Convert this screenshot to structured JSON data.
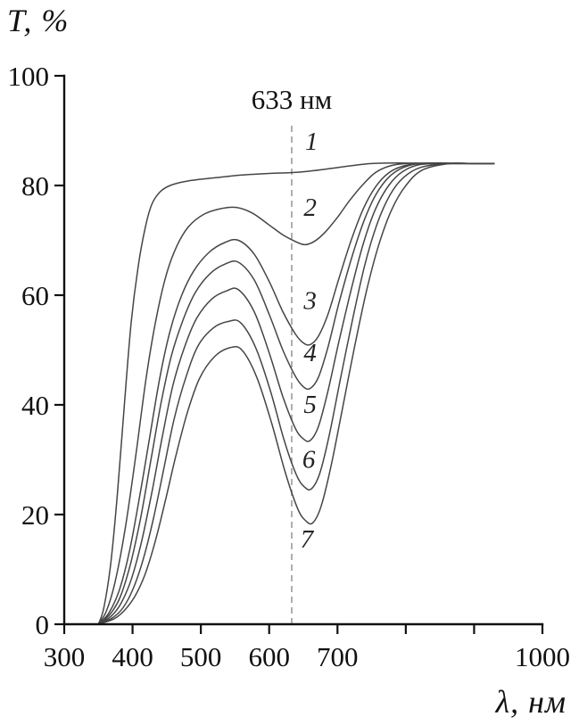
{
  "chart_data": {
    "type": "line",
    "xlabel": "λ, нм",
    "ylabel": "T, %",
    "xlim": [
      300,
      1000
    ],
    "ylim": [
      0,
      100
    ],
    "grid": false,
    "legend_position": "none",
    "x_ticks": {
      "values": [
        300,
        400,
        500,
        600,
        700,
        800,
        900,
        1000
      ],
      "labels": [
        "300",
        "400",
        "500",
        "600",
        "700",
        "",
        "",
        "1000"
      ]
    },
    "y_ticks": {
      "values": [
        0,
        20,
        40,
        60,
        80,
        100
      ],
      "labels": [
        "0",
        "20",
        "40",
        "60",
        "80",
        "100"
      ]
    },
    "annotation": {
      "text": "633 нм",
      "x": 633,
      "text_y": 94,
      "line_top_y": 91,
      "line_bottom_y": 0
    },
    "curve_labels": [
      {
        "text": "1",
        "x": 662,
        "y": 86.5
      },
      {
        "text": "2",
        "x": 660,
        "y": 74.5
      },
      {
        "text": "3",
        "x": 660,
        "y": 57.5
      },
      {
        "text": "4",
        "x": 660,
        "y": 48.0
      },
      {
        "text": "5",
        "x": 660,
        "y": 38.5
      },
      {
        "text": "6",
        "x": 658,
        "y": 28.5
      },
      {
        "text": "7",
        "x": 655,
        "y": 14.0
      }
    ],
    "series": [
      {
        "name": "1",
        "points": [
          [
            350,
            0
          ],
          [
            358,
            3
          ],
          [
            368,
            11
          ],
          [
            378,
            24
          ],
          [
            388,
            40
          ],
          [
            398,
            55
          ],
          [
            408,
            65
          ],
          [
            418,
            72
          ],
          [
            428,
            76.5
          ],
          [
            440,
            78.8
          ],
          [
            455,
            80
          ],
          [
            480,
            80.8
          ],
          [
            520,
            81.4
          ],
          [
            560,
            81.9
          ],
          [
            600,
            82.2
          ],
          [
            640,
            82.4
          ],
          [
            665,
            82.7
          ],
          [
            690,
            83.1
          ],
          [
            720,
            83.6
          ],
          [
            750,
            84
          ],
          [
            790,
            84.1
          ],
          [
            840,
            84
          ],
          [
            890,
            84
          ],
          [
            930,
            84
          ]
        ]
      },
      {
        "name": "2",
        "points": [
          [
            350,
            0
          ],
          [
            362,
            2.5
          ],
          [
            375,
            8
          ],
          [
            390,
            18
          ],
          [
            405,
            31
          ],
          [
            420,
            45
          ],
          [
            435,
            56
          ],
          [
            450,
            64
          ],
          [
            465,
            69
          ],
          [
            482,
            72.5
          ],
          [
            505,
            74.8
          ],
          [
            530,
            75.8
          ],
          [
            552,
            76
          ],
          [
            575,
            75
          ],
          [
            600,
            72.8
          ],
          [
            620,
            71
          ],
          [
            638,
            69.8
          ],
          [
            652,
            69.2
          ],
          [
            666,
            69.8
          ],
          [
            682,
            71.5
          ],
          [
            700,
            74.2
          ],
          [
            718,
            77.3
          ],
          [
            736,
            80
          ],
          [
            755,
            82.3
          ],
          [
            775,
            83.5
          ],
          [
            800,
            84
          ],
          [
            850,
            84.1
          ],
          [
            900,
            84
          ],
          [
            930,
            84
          ]
        ]
      },
      {
        "name": "3",
        "points": [
          [
            350,
            0
          ],
          [
            365,
            2
          ],
          [
            380,
            6
          ],
          [
            395,
            13
          ],
          [
            410,
            23
          ],
          [
            425,
            34
          ],
          [
            440,
            45
          ],
          [
            455,
            53.5
          ],
          [
            472,
            60
          ],
          [
            490,
            64.5
          ],
          [
            512,
            67.8
          ],
          [
            535,
            69.6
          ],
          [
            555,
            70
          ],
          [
            578,
            67.5
          ],
          [
            600,
            62.5
          ],
          [
            620,
            57
          ],
          [
            638,
            53
          ],
          [
            650,
            51.3
          ],
          [
            660,
            51
          ],
          [
            672,
            52.5
          ],
          [
            686,
            56.5
          ],
          [
            702,
            63
          ],
          [
            720,
            70
          ],
          [
            738,
            75.8
          ],
          [
            756,
            79.8
          ],
          [
            775,
            82.3
          ],
          [
            795,
            83.5
          ],
          [
            820,
            84
          ],
          [
            860,
            84
          ],
          [
            900,
            84
          ],
          [
            930,
            84
          ]
        ]
      },
      {
        "name": "4",
        "points": [
          [
            350,
            0
          ],
          [
            367,
            1.8
          ],
          [
            382,
            5
          ],
          [
            397,
            11
          ],
          [
            412,
            19.5
          ],
          [
            427,
            30
          ],
          [
            442,
            40.5
          ],
          [
            457,
            49
          ],
          [
            474,
            55.5
          ],
          [
            492,
            60.5
          ],
          [
            514,
            64
          ],
          [
            536,
            65.7
          ],
          [
            555,
            66
          ],
          [
            578,
            62.8
          ],
          [
            600,
            56.5
          ],
          [
            620,
            50
          ],
          [
            638,
            45.3
          ],
          [
            650,
            43.3
          ],
          [
            660,
            43
          ],
          [
            672,
            45
          ],
          [
            686,
            50.5
          ],
          [
            702,
            58.5
          ],
          [
            720,
            66.5
          ],
          [
            738,
            73.3
          ],
          [
            756,
            78.3
          ],
          [
            775,
            81.5
          ],
          [
            795,
            83.2
          ],
          [
            820,
            84
          ],
          [
            860,
            84
          ],
          [
            900,
            84
          ],
          [
            930,
            84
          ]
        ]
      },
      {
        "name": "5",
        "points": [
          [
            350,
            0
          ],
          [
            369,
            1.5
          ],
          [
            384,
            4
          ],
          [
            399,
            8.5
          ],
          [
            414,
            15.5
          ],
          [
            429,
            24.5
          ],
          [
            444,
            34.5
          ],
          [
            459,
            43.5
          ],
          [
            476,
            50.5
          ],
          [
            494,
            55.8
          ],
          [
            516,
            59.3
          ],
          [
            538,
            60.8
          ],
          [
            555,
            61
          ],
          [
            578,
            57
          ],
          [
            600,
            49.5
          ],
          [
            620,
            41.5
          ],
          [
            638,
            35.8
          ],
          [
            650,
            33.8
          ],
          [
            660,
            33.5
          ],
          [
            672,
            36
          ],
          [
            686,
            42.5
          ],
          [
            702,
            51.5
          ],
          [
            720,
            61
          ],
          [
            738,
            69.5
          ],
          [
            756,
            75.8
          ],
          [
            775,
            80
          ],
          [
            795,
            82.5
          ],
          [
            820,
            83.8
          ],
          [
            860,
            84
          ],
          [
            900,
            84
          ],
          [
            930,
            84
          ]
        ]
      },
      {
        "name": "6",
        "points": [
          [
            350,
            0
          ],
          [
            371,
            1.2
          ],
          [
            386,
            3
          ],
          [
            401,
            6.5
          ],
          [
            416,
            12
          ],
          [
            431,
            19.5
          ],
          [
            446,
            28.5
          ],
          [
            461,
            37.5
          ],
          [
            478,
            45
          ],
          [
            496,
            50.8
          ],
          [
            518,
            54
          ],
          [
            540,
            55.2
          ],
          [
            558,
            55
          ],
          [
            580,
            50.5
          ],
          [
            602,
            42.5
          ],
          [
            622,
            33.5
          ],
          [
            640,
            27.2
          ],
          [
            652,
            25
          ],
          [
            662,
            24.7
          ],
          [
            674,
            27.5
          ],
          [
            688,
            34.5
          ],
          [
            704,
            44.5
          ],
          [
            722,
            55.5
          ],
          [
            740,
            65.5
          ],
          [
            758,
            73
          ],
          [
            777,
            78.3
          ],
          [
            797,
            81.5
          ],
          [
            822,
            83.3
          ],
          [
            862,
            84
          ],
          [
            900,
            84
          ],
          [
            930,
            84
          ]
        ]
      },
      {
        "name": "7",
        "points": [
          [
            350,
            0
          ],
          [
            373,
            1
          ],
          [
            388,
            2.5
          ],
          [
            403,
            5
          ],
          [
            418,
            9
          ],
          [
            433,
            15
          ],
          [
            448,
            22.5
          ],
          [
            463,
            30.5
          ],
          [
            480,
            38.5
          ],
          [
            498,
            44.8
          ],
          [
            520,
            48.8
          ],
          [
            542,
            50.4
          ],
          [
            560,
            50
          ],
          [
            582,
            45
          ],
          [
            604,
            36.5
          ],
          [
            624,
            27.5
          ],
          [
            642,
            21
          ],
          [
            654,
            18.8
          ],
          [
            664,
            18.5
          ],
          [
            676,
            21.5
          ],
          [
            690,
            28.5
          ],
          [
            706,
            38.5
          ],
          [
            724,
            50
          ],
          [
            742,
            60.5
          ],
          [
            760,
            69
          ],
          [
            779,
            75.5
          ],
          [
            799,
            79.8
          ],
          [
            824,
            82.8
          ],
          [
            864,
            84
          ],
          [
            900,
            84
          ],
          [
            930,
            84
          ]
        ]
      }
    ]
  }
}
